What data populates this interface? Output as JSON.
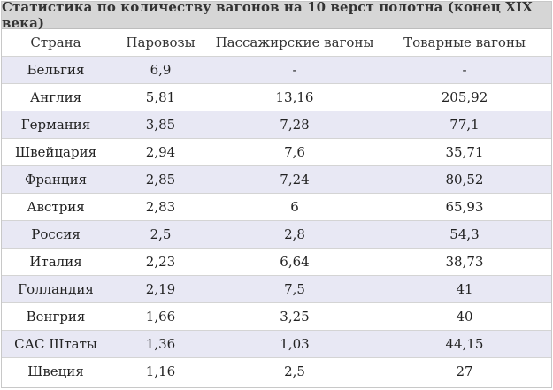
{
  "title": "Статистика по количеству вагонов на 10 верст полотна (конец XIX века)",
  "headers": [
    "Страна",
    "Паровозы",
    "Пассажирские вагоны",
    "Товарные вагоны"
  ],
  "rows": [
    [
      "Бельгия",
      "6,9",
      "-",
      "-"
    ],
    [
      "Англия",
      "5,81",
      "13,16",
      "205,92"
    ],
    [
      "Германия",
      "3,85",
      "7,28",
      "77,1"
    ],
    [
      "Швейцария",
      "2,94",
      "7,6",
      "35,71"
    ],
    [
      "Франция",
      "2,85",
      "7,24",
      "80,52"
    ],
    [
      "Австрия",
      "2,83",
      "6",
      "65,93"
    ],
    [
      "Россия",
      "2,5",
      "2,8",
      "54,3"
    ],
    [
      "Италия",
      "2,23",
      "6,64",
      "38,73"
    ],
    [
      "Голландия",
      "2,19",
      "7,5",
      "41"
    ],
    [
      "Венгрия",
      "1,66",
      "3,25",
      "40"
    ],
    [
      "САС Штаты",
      "1,36",
      "1,03",
      "44,15"
    ],
    [
      "Швеция",
      "1,16",
      "2,5",
      "27"
    ]
  ],
  "colors": {
    "title_bg": "#d6d6d6",
    "stripe_bg": "#e8e8f4",
    "row_bg": "#ffffff",
    "border": "#d4d4d4"
  }
}
